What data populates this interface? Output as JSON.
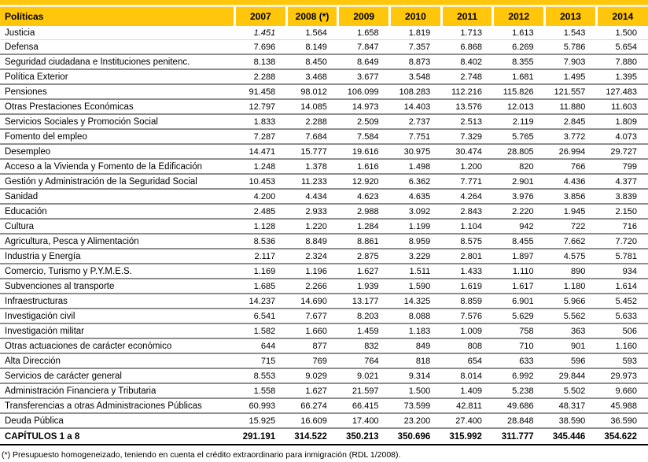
{
  "colors": {
    "header_gold": "#FFC60B",
    "accent_gap": "#FDF4CF",
    "row_border": "#8F8F8F",
    "first_row_border": "#D8D8D8",
    "total_row_border": "#000000"
  },
  "table": {
    "columns": [
      "Políticas",
      "2007",
      "2008 (*)",
      "2009",
      "2010",
      "2011",
      "2012",
      "2013",
      "2014"
    ],
    "rows": [
      {
        "label": "Justicia",
        "values": [
          "1.451",
          "1.564",
          "1.658",
          "1.819",
          "1.713",
          "1.613",
          "1.543",
          "1.500"
        ]
      },
      {
        "label": "Defensa",
        "values": [
          "7.696",
          "8.149",
          "7.847",
          "7.357",
          "6.868",
          "6.269",
          "5.786",
          "5.654"
        ]
      },
      {
        "label": "Seguridad ciudadana e Instituciones penitenc.",
        "values": [
          "8.138",
          "8.450",
          "8.649",
          "8.873",
          "8.402",
          "8.355",
          "7.903",
          "7.880"
        ]
      },
      {
        "label": "Política Exterior",
        "values": [
          "2.288",
          "3.468",
          "3.677",
          "3.548",
          "2.748",
          "1.681",
          "1.495",
          "1.395"
        ]
      },
      {
        "label": "Pensiones",
        "values": [
          "91.458",
          "98.012",
          "106.099",
          "108.283",
          "112.216",
          "115.826",
          "121.557",
          "127.483"
        ]
      },
      {
        "label": "Otras Prestaciones Económicas",
        "values": [
          "12.797",
          "14.085",
          "14.973",
          "14.403",
          "13.576",
          "12.013",
          "11.880",
          "11.603"
        ]
      },
      {
        "label": "Servicios Sociales y Promoción Social",
        "values": [
          "1.833",
          "2.288",
          "2.509",
          "2.737",
          "2.513",
          "2.119",
          "2.845",
          "1.809"
        ]
      },
      {
        "label": "Fomento del empleo",
        "values": [
          "7.287",
          "7.684",
          "7.584",
          "7.751",
          "7.329",
          "5.765",
          "3.772",
          "4.073"
        ]
      },
      {
        "label": "Desempleo",
        "values": [
          "14.471",
          "15.777",
          "19.616",
          "30.975",
          "30.474",
          "28.805",
          "26.994",
          "29.727"
        ]
      },
      {
        "label": "Acceso a la Vivienda y Fomento de la Edificación",
        "values": [
          "1.248",
          "1.378",
          "1.616",
          "1.498",
          "1.200",
          "820",
          "766",
          "799"
        ]
      },
      {
        "label": "Gestión y Administración de la Seguridad Social",
        "values": [
          "10.453",
          "11.233",
          "12.920",
          "6.362",
          "7.771",
          "2.901",
          "4.436",
          "4.377"
        ]
      },
      {
        "label": "Sanidad",
        "values": [
          "4.200",
          "4.434",
          "4.623",
          "4.635",
          "4.264",
          "3.976",
          "3.856",
          "3.839"
        ]
      },
      {
        "label": "Educación",
        "values": [
          "2.485",
          "2.933",
          "2.988",
          "3.092",
          "2.843",
          "2.220",
          "1.945",
          "2.150"
        ]
      },
      {
        "label": "Cultura",
        "values": [
          "1.128",
          "1.220",
          "1.284",
          "1.199",
          "1.104",
          "942",
          "722",
          "716"
        ]
      },
      {
        "label": "Agricultura, Pesca y Alimentación",
        "values": [
          "8.536",
          "8.849",
          "8.861",
          "8.959",
          "8.575",
          "8.455",
          "7.662",
          "7.720"
        ]
      },
      {
        "label": "Industria y Energía",
        "values": [
          "2.117",
          "2.324",
          "2.875",
          "3.229",
          "2.801",
          "1.897",
          "4.575",
          "5.781"
        ]
      },
      {
        "label": "Comercio, Turismo y P.Y.M.E.S.",
        "values": [
          "1.169",
          "1.196",
          "1.627",
          "1.511",
          "1.433",
          "1.110",
          "890",
          "934"
        ]
      },
      {
        "label": "Subvenciones al transporte",
        "values": [
          "1.685",
          "2.266",
          "1.939",
          "1.590",
          "1.619",
          "1.617",
          "1.180",
          "1.614"
        ]
      },
      {
        "label": "Infraestructuras",
        "values": [
          "14.237",
          "14.690",
          "13.177",
          "14.325",
          "8.859",
          "6.901",
          "5.966",
          "5.452"
        ]
      },
      {
        "label": "Investigación civil",
        "values": [
          "6.541",
          "7.677",
          "8.203",
          "8.088",
          "7.576",
          "5.629",
          "5.562",
          "5.633"
        ]
      },
      {
        "label": "Investigación militar",
        "values": [
          "1.582",
          "1.660",
          "1.459",
          "1.183",
          "1.009",
          "758",
          "363",
          "506"
        ]
      },
      {
        "label": "Otras actuaciones de carácter económico",
        "values": [
          "644",
          "877",
          "832",
          "849",
          "808",
          "710",
          "901",
          "1.160"
        ]
      },
      {
        "label": "Alta Dirección",
        "values": [
          "715",
          "769",
          "764",
          "818",
          "654",
          "633",
          "596",
          "593"
        ]
      },
      {
        "label": "Servicios de carácter general",
        "values": [
          "8.553",
          "9.029",
          "9.021",
          "9.314",
          "8.014",
          "6.992",
          "29.844",
          "29.973"
        ]
      },
      {
        "label": "Administración Financiera y Tributaria",
        "values": [
          "1.558",
          "1.627",
          "21.597",
          "1.500",
          "1.409",
          "5.238",
          "5.502",
          "9.660"
        ]
      },
      {
        "label": "Transferencias a otras Administraciones Públicas",
        "values": [
          "60.993",
          "66.274",
          "66.415",
          "73.599",
          "42.811",
          "49.686",
          "48.317",
          "45.988"
        ]
      },
      {
        "label": "Deuda Pública",
        "values": [
          "15.925",
          "16.609",
          "17.400",
          "23.200",
          "27.400",
          "28.848",
          "38.590",
          "36.590"
        ]
      }
    ],
    "italic_cells": [
      {
        "row": 0,
        "col": 0
      }
    ],
    "total_row": {
      "label": "CAPÍTULOS 1 a 8",
      "values": [
        "291.191",
        "314.522",
        "350.213",
        "350.696",
        "315.992",
        "311.777",
        "345.446",
        "354.622"
      ]
    }
  },
  "footnote": "(*) Presupuesto homogeneizado, teniendo en cuenta el crédito extraordinario para inmigración (RDL 1/2008)."
}
